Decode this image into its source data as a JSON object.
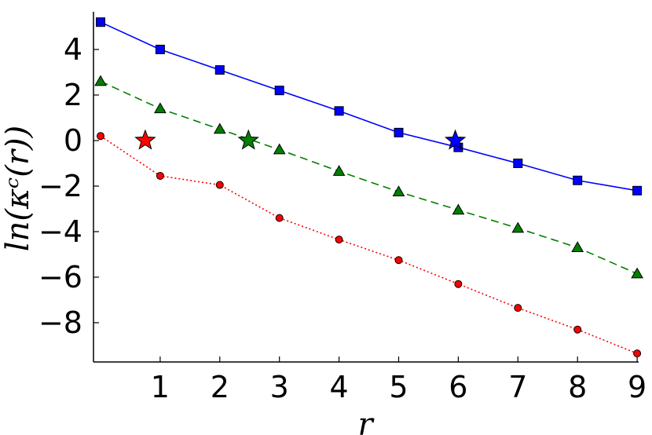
{
  "chart_data": {
    "type": "line",
    "title": "",
    "xlabel": "r",
    "ylabel": "ln(κᶜ(r))",
    "xlim": [
      0,
      9.1
    ],
    "ylim": [
      -9.8,
      5.6
    ],
    "x_ticks": [
      1,
      2,
      3,
      4,
      5,
      6,
      7,
      8,
      9
    ],
    "y_ticks": [
      4,
      2,
      0,
      -2,
      -4,
      -6,
      -8
    ],
    "y_tick_labels": [
      "4",
      "2",
      "0",
      "−2",
      "−4",
      "−6",
      "−8"
    ],
    "grid": false,
    "series": [
      {
        "color": "#0000ff",
        "line_style": "solid",
        "marker": "square",
        "x": [
          0,
          1,
          2,
          3,
          4,
          5,
          6,
          7,
          8,
          9
        ],
        "y": [
          5.2,
          4.0,
          3.1,
          2.2,
          1.3,
          0.35,
          -0.3,
          -1.0,
          -1.75,
          -2.2
        ]
      },
      {
        "color": "#007f00",
        "line_style": "dashed",
        "marker": "triangle",
        "x": [
          0,
          1,
          2,
          3,
          4,
          5,
          6,
          7,
          8,
          9
        ],
        "y": [
          2.6,
          1.4,
          0.5,
          -0.4,
          -1.35,
          -2.25,
          -3.05,
          -3.85,
          -4.7,
          -5.85
        ]
      },
      {
        "color": "#ff0000",
        "line_style": "dotted",
        "marker": "circle",
        "x": [
          0,
          1,
          2,
          3,
          4,
          5,
          6,
          7,
          8,
          9
        ],
        "y": [
          0.2,
          -1.55,
          -1.95,
          -3.4,
          -4.35,
          -5.25,
          -6.3,
          -7.35,
          -8.3,
          -9.35
        ]
      }
    ],
    "stars": [
      {
        "color": "#ff0000",
        "x": 0.75,
        "y": 0.0
      },
      {
        "color": "#007f00",
        "x": 2.48,
        "y": 0.0
      },
      {
        "color": "#0000ff",
        "x": 5.95,
        "y": 0.0
      }
    ]
  }
}
